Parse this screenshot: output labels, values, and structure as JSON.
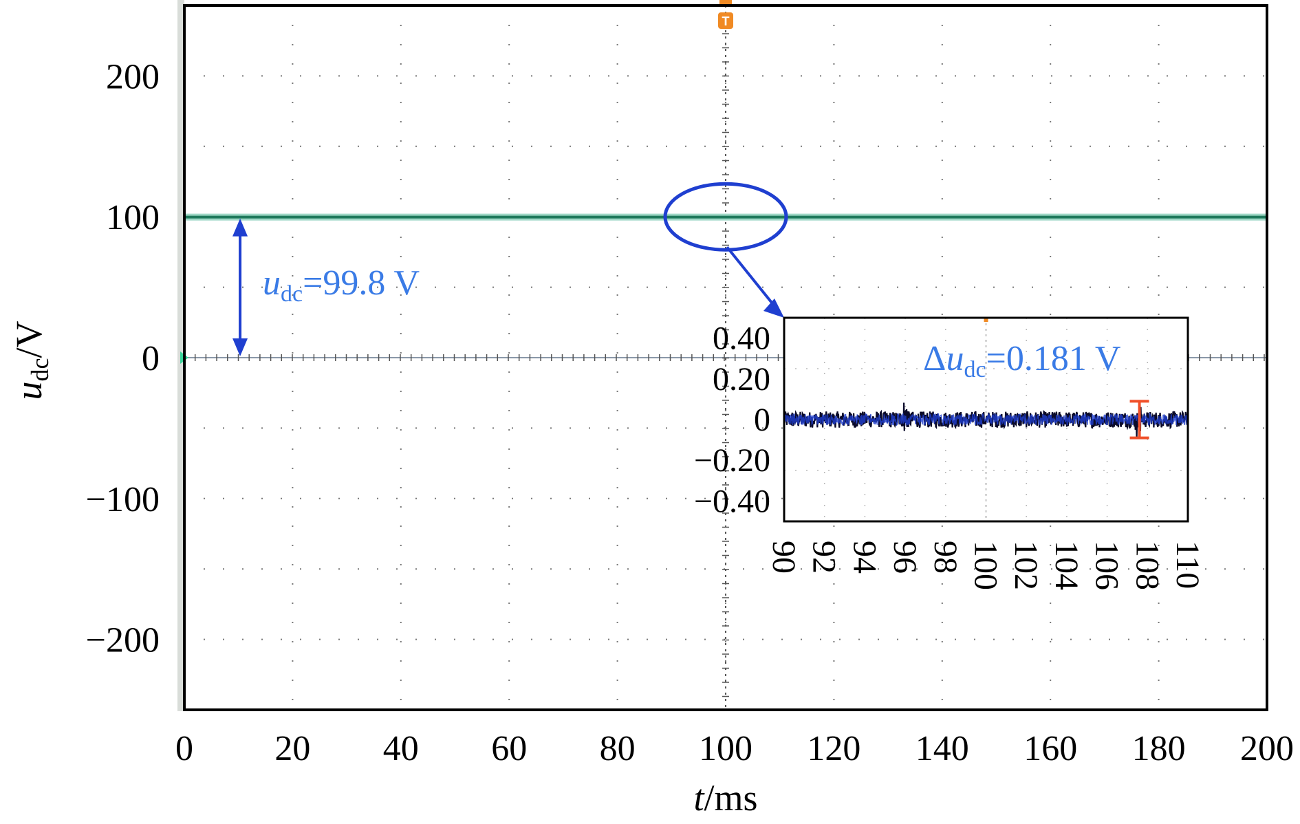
{
  "chart_data": {
    "type": "line",
    "xlabel": {
      "var": "t",
      "unit": "/ms"
    },
    "ylabel": {
      "var": "u",
      "sub": "dc",
      "unit": "/V"
    },
    "xlim": [
      0,
      200
    ],
    "ylim": [
      -250,
      250
    ],
    "xticks": [
      0,
      20,
      40,
      60,
      80,
      100,
      120,
      140,
      160,
      180,
      200
    ],
    "yticks": [
      200,
      100,
      0,
      -100,
      -200
    ],
    "grid": true,
    "series": [
      {
        "x": [
          0,
          200
        ],
        "y": [
          99.8,
          99.8
        ],
        "color": "#1f7a5c"
      }
    ],
    "trigger_marker": {
      "x": 100,
      "label": "T",
      "color": "#f08a24"
    },
    "annotations": [
      {
        "var": "u",
        "sub": "dc",
        "value": "=99.8 V",
        "color": "#3a7be6",
        "arrow_color": "#1f3fd0"
      }
    ],
    "highlight_ellipse": {
      "x": 100,
      "y": 100,
      "color": "#1f3fd0"
    },
    "inset": {
      "type": "line",
      "xlim": [
        90,
        110
      ],
      "ylim": [
        -0.5,
        0.5
      ],
      "xticks": [
        90,
        92,
        94,
        96,
        98,
        100,
        102,
        104,
        106,
        108,
        110
      ],
      "ytick_labels": [
        "0.40",
        "0.20",
        "0",
        "−0.20",
        "−0.40"
      ],
      "yticks": [
        0.4,
        0.2,
        0,
        -0.2,
        -0.4
      ],
      "series_color": "#1f3fd0",
      "noise_amplitude": 0.04,
      "ripple_marker": {
        "x": 107.6,
        "low": -0.09,
        "high": 0.09,
        "color": "#f0502a"
      },
      "annotation": {
        "prefix": "Δ",
        "var": "u",
        "sub": "dc",
        "value": "=0.181 V",
        "color": "#3a7be6"
      }
    }
  }
}
